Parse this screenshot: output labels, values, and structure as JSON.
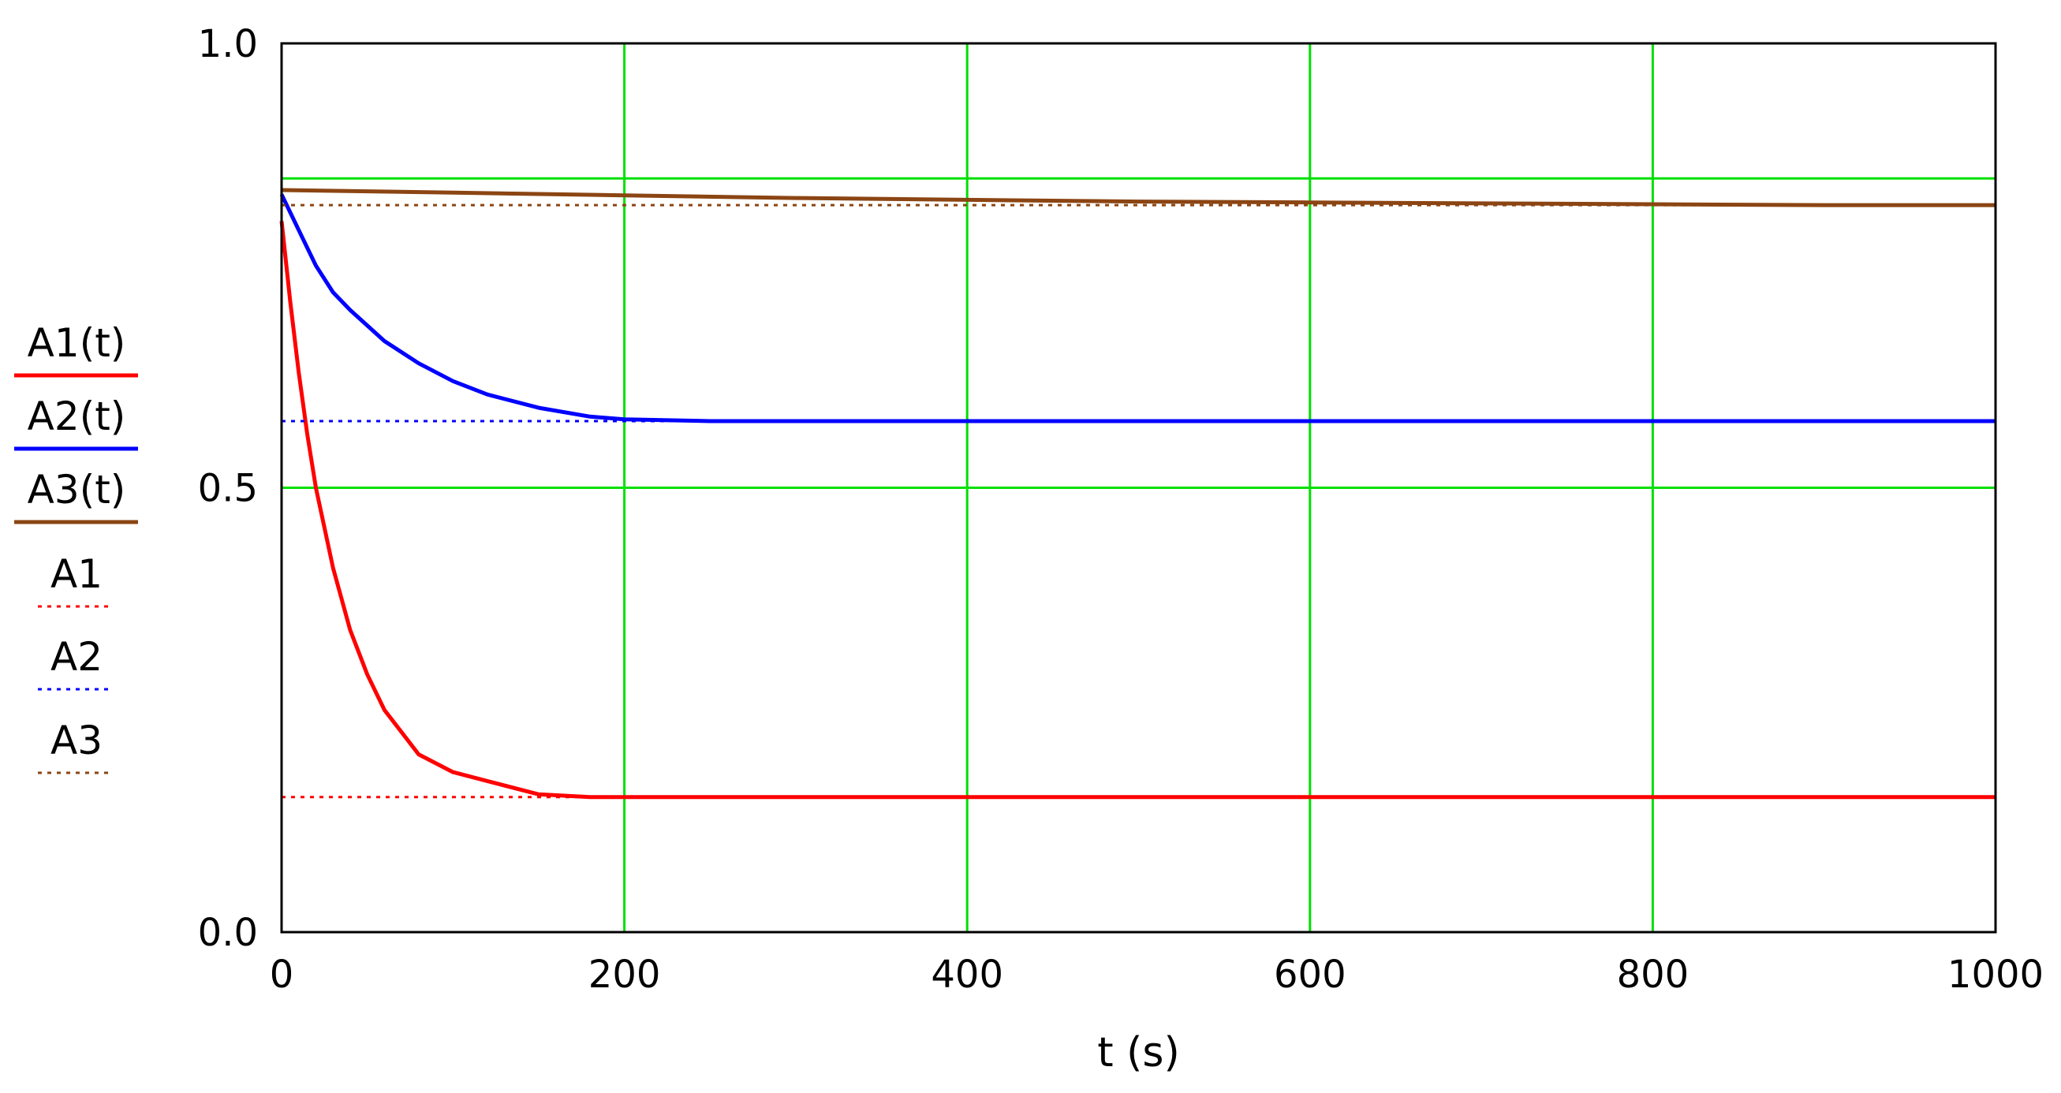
{
  "chart_data": {
    "type": "line",
    "title": "",
    "xlabel": "t (s)",
    "ylabel": "",
    "xlim": [
      0,
      1000
    ],
    "ylim": [
      0,
      1.0
    ],
    "grid": true,
    "legend_position": "left",
    "x_ticks": [
      "0",
      "200",
      "400",
      "600",
      "800",
      "1000"
    ],
    "y_ticks": [
      "0.0",
      "0.5",
      "1.0"
    ],
    "series": [
      {
        "name": "A1(t)",
        "color": "#ff0000",
        "style": "solid",
        "x": [
          0,
          5,
          10,
          15,
          20,
          30,
          40,
          50,
          60,
          80,
          100,
          120,
          150,
          180,
          200,
          400,
          600,
          800,
          1000
        ],
        "y": [
          0.8,
          0.71,
          0.63,
          0.56,
          0.5,
          0.41,
          0.34,
          0.29,
          0.25,
          0.2,
          0.18,
          0.17,
          0.155,
          0.152,
          0.152,
          0.152,
          0.152,
          0.152,
          0.152
        ]
      },
      {
        "name": "A2(t)",
        "color": "#0000ff",
        "style": "solid",
        "x": [
          0,
          10,
          20,
          30,
          40,
          60,
          80,
          100,
          120,
          150,
          180,
          200,
          250,
          300,
          400,
          600,
          800,
          1000
        ],
        "y": [
          0.83,
          0.79,
          0.75,
          0.72,
          0.7,
          0.665,
          0.64,
          0.62,
          0.605,
          0.59,
          0.58,
          0.577,
          0.575,
          0.575,
          0.575,
          0.575,
          0.575,
          0.575
        ]
      },
      {
        "name": "A3(t)",
        "color": "#8b4513",
        "style": "solid",
        "x": [
          0,
          100,
          200,
          300,
          400,
          500,
          600,
          700,
          800,
          900,
          1000
        ],
        "y": [
          0.835,
          0.832,
          0.829,
          0.826,
          0.824,
          0.822,
          0.821,
          0.82,
          0.819,
          0.818,
          0.818
        ]
      },
      {
        "name": "A1",
        "color": "#ff0000",
        "style": "dotted",
        "x": [
          0,
          180
        ],
        "y": [
          0.152,
          0.152
        ]
      },
      {
        "name": "A2",
        "color": "#0000ff",
        "style": "dotted",
        "x": [
          0,
          280
        ],
        "y": [
          0.575,
          0.575
        ]
      },
      {
        "name": "A3",
        "color": "#8b4513",
        "style": "dotted",
        "x": [
          0,
          1000
        ],
        "y": [
          0.818,
          0.818
        ]
      }
    ]
  }
}
